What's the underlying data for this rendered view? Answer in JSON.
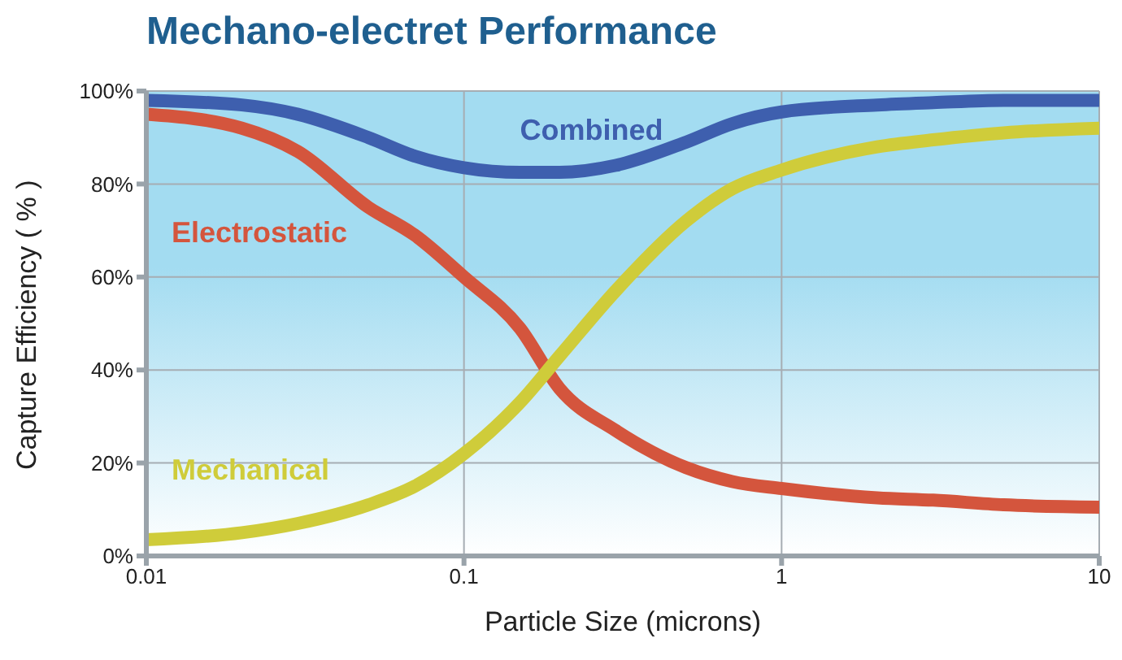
{
  "chart_data": {
    "type": "line",
    "title": "Mechano-electret Performance",
    "xlabel": "Particle Size (microns)",
    "ylabel": "Capture Efficiency ( % )",
    "log": "x",
    "grid": true,
    "marker": "none",
    "line_style": "solid",
    "x": [
      0.01,
      0.02,
      0.03,
      0.05,
      0.07,
      0.1,
      0.15,
      0.2,
      0.3,
      0.5,
      0.7,
      1,
      2,
      3,
      5,
      10
    ],
    "xlim": [
      0.01,
      10
    ],
    "xticks": [
      0.01,
      0.1,
      1,
      10
    ],
    "ylim": [
      0,
      100
    ],
    "yticks": [
      {
        "value": 0,
        "label": "0%"
      },
      {
        "value": 20,
        "label": "20%"
      },
      {
        "value": 40,
        "label": "40%"
      },
      {
        "value": 60,
        "label": "60%"
      },
      {
        "value": 80,
        "label": "80%"
      },
      {
        "value": 100,
        "label": "100%"
      }
    ],
    "series": [
      {
        "name": "Combined",
        "color": "#3e5fae",
        "values": [
          98,
          97,
          95,
          90,
          86,
          83.5,
          82.5,
          82.5,
          84,
          89,
          93,
          95.5,
          97,
          97.5,
          98,
          98
        ]
      },
      {
        "name": "Electrostatic",
        "color": "#d4553d",
        "values": [
          95,
          92,
          87,
          75,
          69,
          60,
          49,
          36,
          27,
          19,
          16,
          14.5,
          12.5,
          12,
          11,
          10.5
        ]
      },
      {
        "name": "Mechanical",
        "color": "#cfcc3a",
        "values": [
          3.5,
          5,
          7,
          11,
          15,
          22,
          33,
          43,
          57,
          72,
          79,
          83,
          88,
          89.5,
          91,
          92
        ]
      }
    ]
  }
}
